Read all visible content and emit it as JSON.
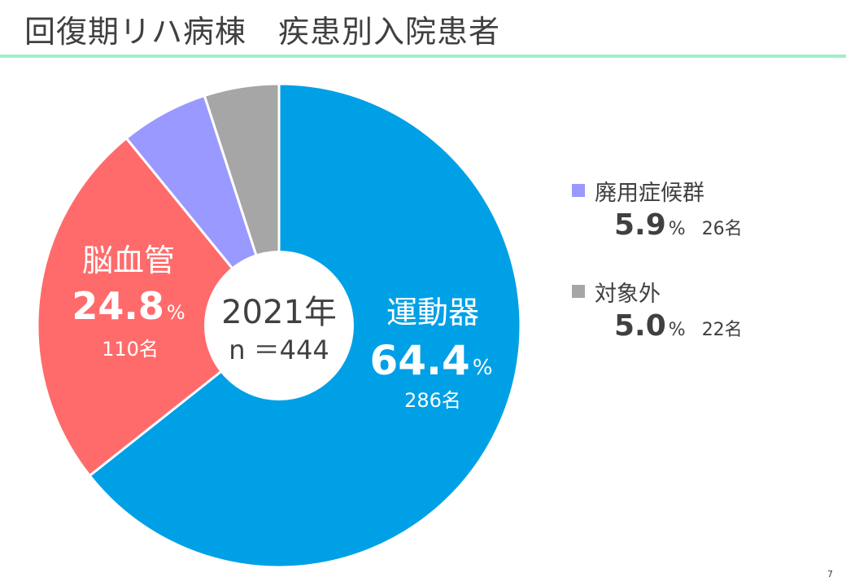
{
  "header": {
    "title": "回復期リハ病棟　疾患別入院患者"
  },
  "center_label": {
    "year": "2021年",
    "n": "n ＝444"
  },
  "percent_unit": "%",
  "page_number": "7",
  "chart_data": {
    "type": "pie",
    "title": "回復期リハ病棟　疾患別入院患者",
    "slices": [
      {
        "name": "運動器",
        "percent": 64.4,
        "percent_label": "64.4",
        "count_label": "286名",
        "color": "#00a0e6"
      },
      {
        "name": "脳血管",
        "percent": 24.8,
        "percent_label": "24.8",
        "count_label": "110名",
        "color": "#ff6b6b"
      },
      {
        "name": "廃用症候群",
        "percent": 5.9,
        "percent_label": "5.9",
        "count_label": "26名",
        "color": "#9999ff"
      },
      {
        "name": "対象外",
        "percent": 5.0,
        "percent_label": "5.0",
        "count_label": "22名",
        "color": "#a6a6a6"
      }
    ],
    "legend_position": "right"
  }
}
